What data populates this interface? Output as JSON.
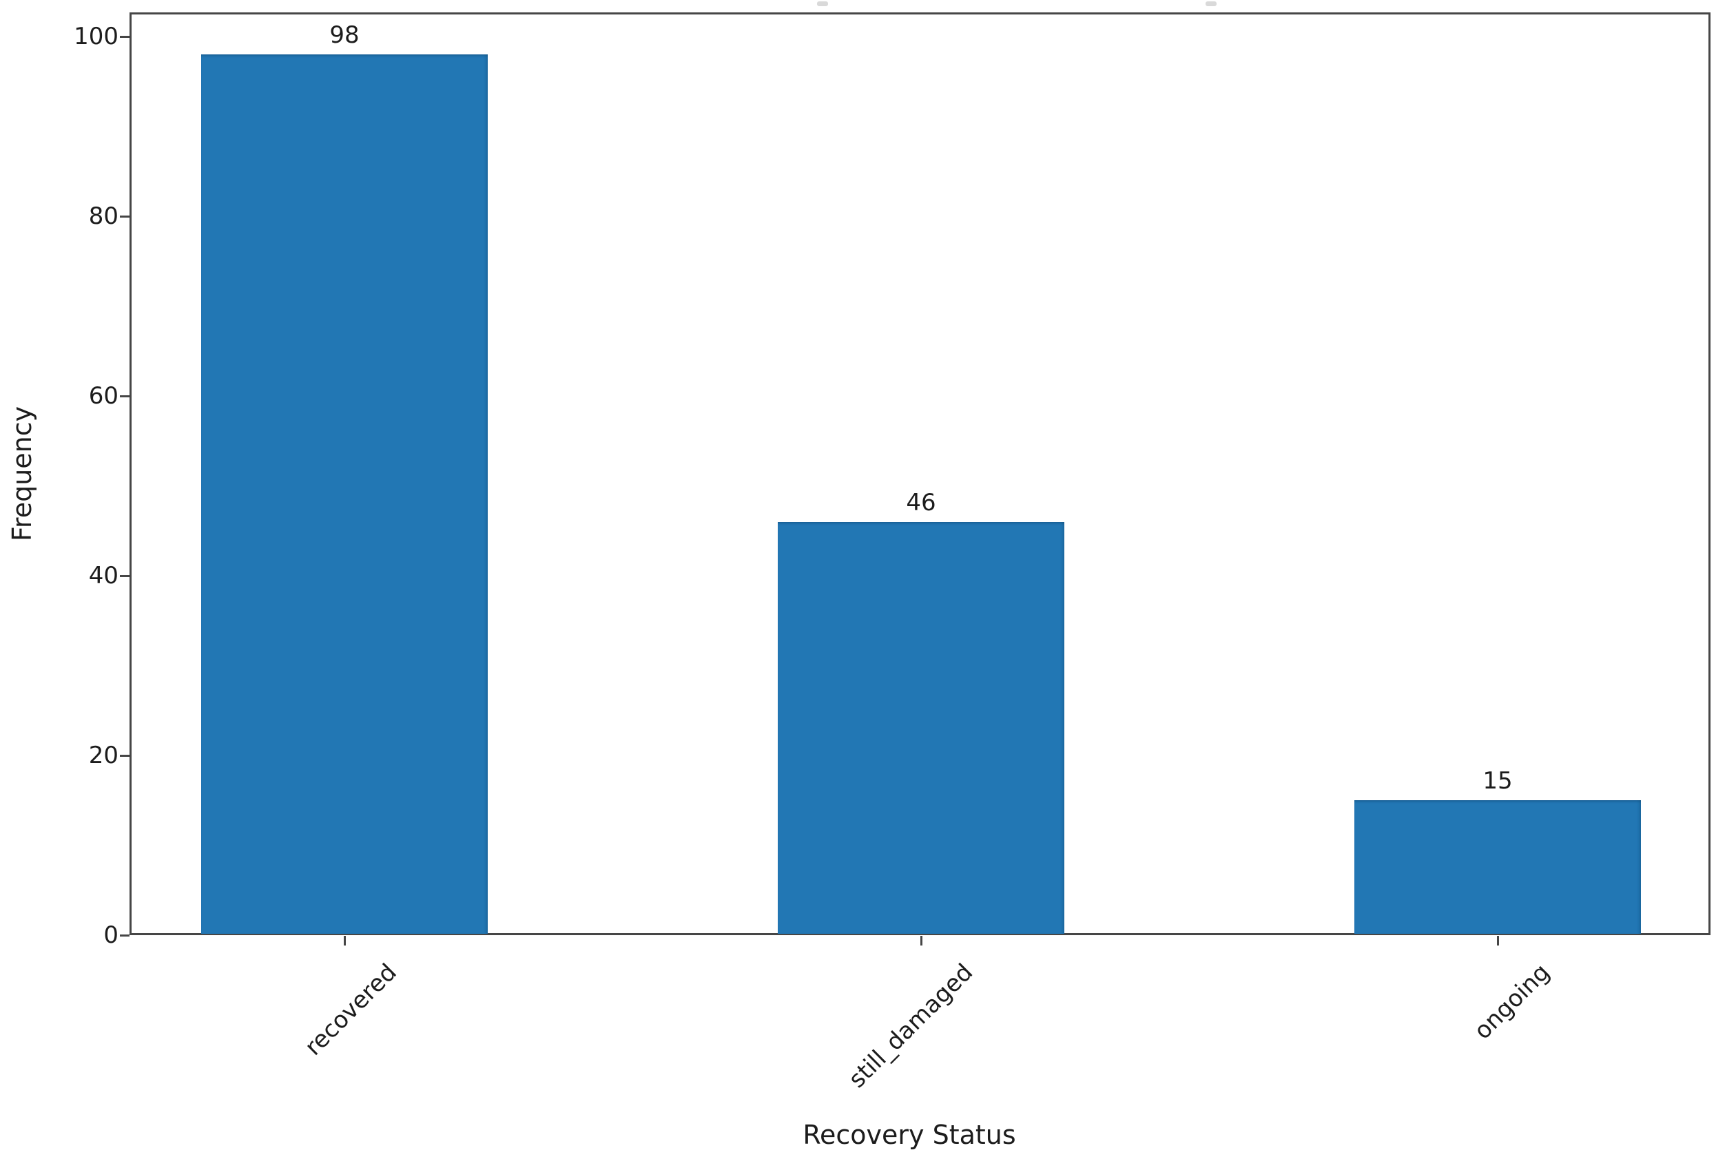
{
  "chart_data": {
    "type": "bar",
    "title": "",
    "categories": [
      "recovered",
      "still_damaged",
      "ongoing"
    ],
    "values": [
      98,
      46,
      15
    ],
    "value_labels": [
      "98",
      "46",
      "15"
    ],
    "xlabel": "Recovery Status",
    "ylabel": "Frequency",
    "ylim": [
      0,
      100
    ],
    "yticks": [
      0,
      20,
      40,
      60,
      80,
      100
    ],
    "bar_color": "#2277b4",
    "axis_color": "#464646",
    "text_color": "#1c1c1c",
    "grid": false,
    "legend_position": "none"
  }
}
